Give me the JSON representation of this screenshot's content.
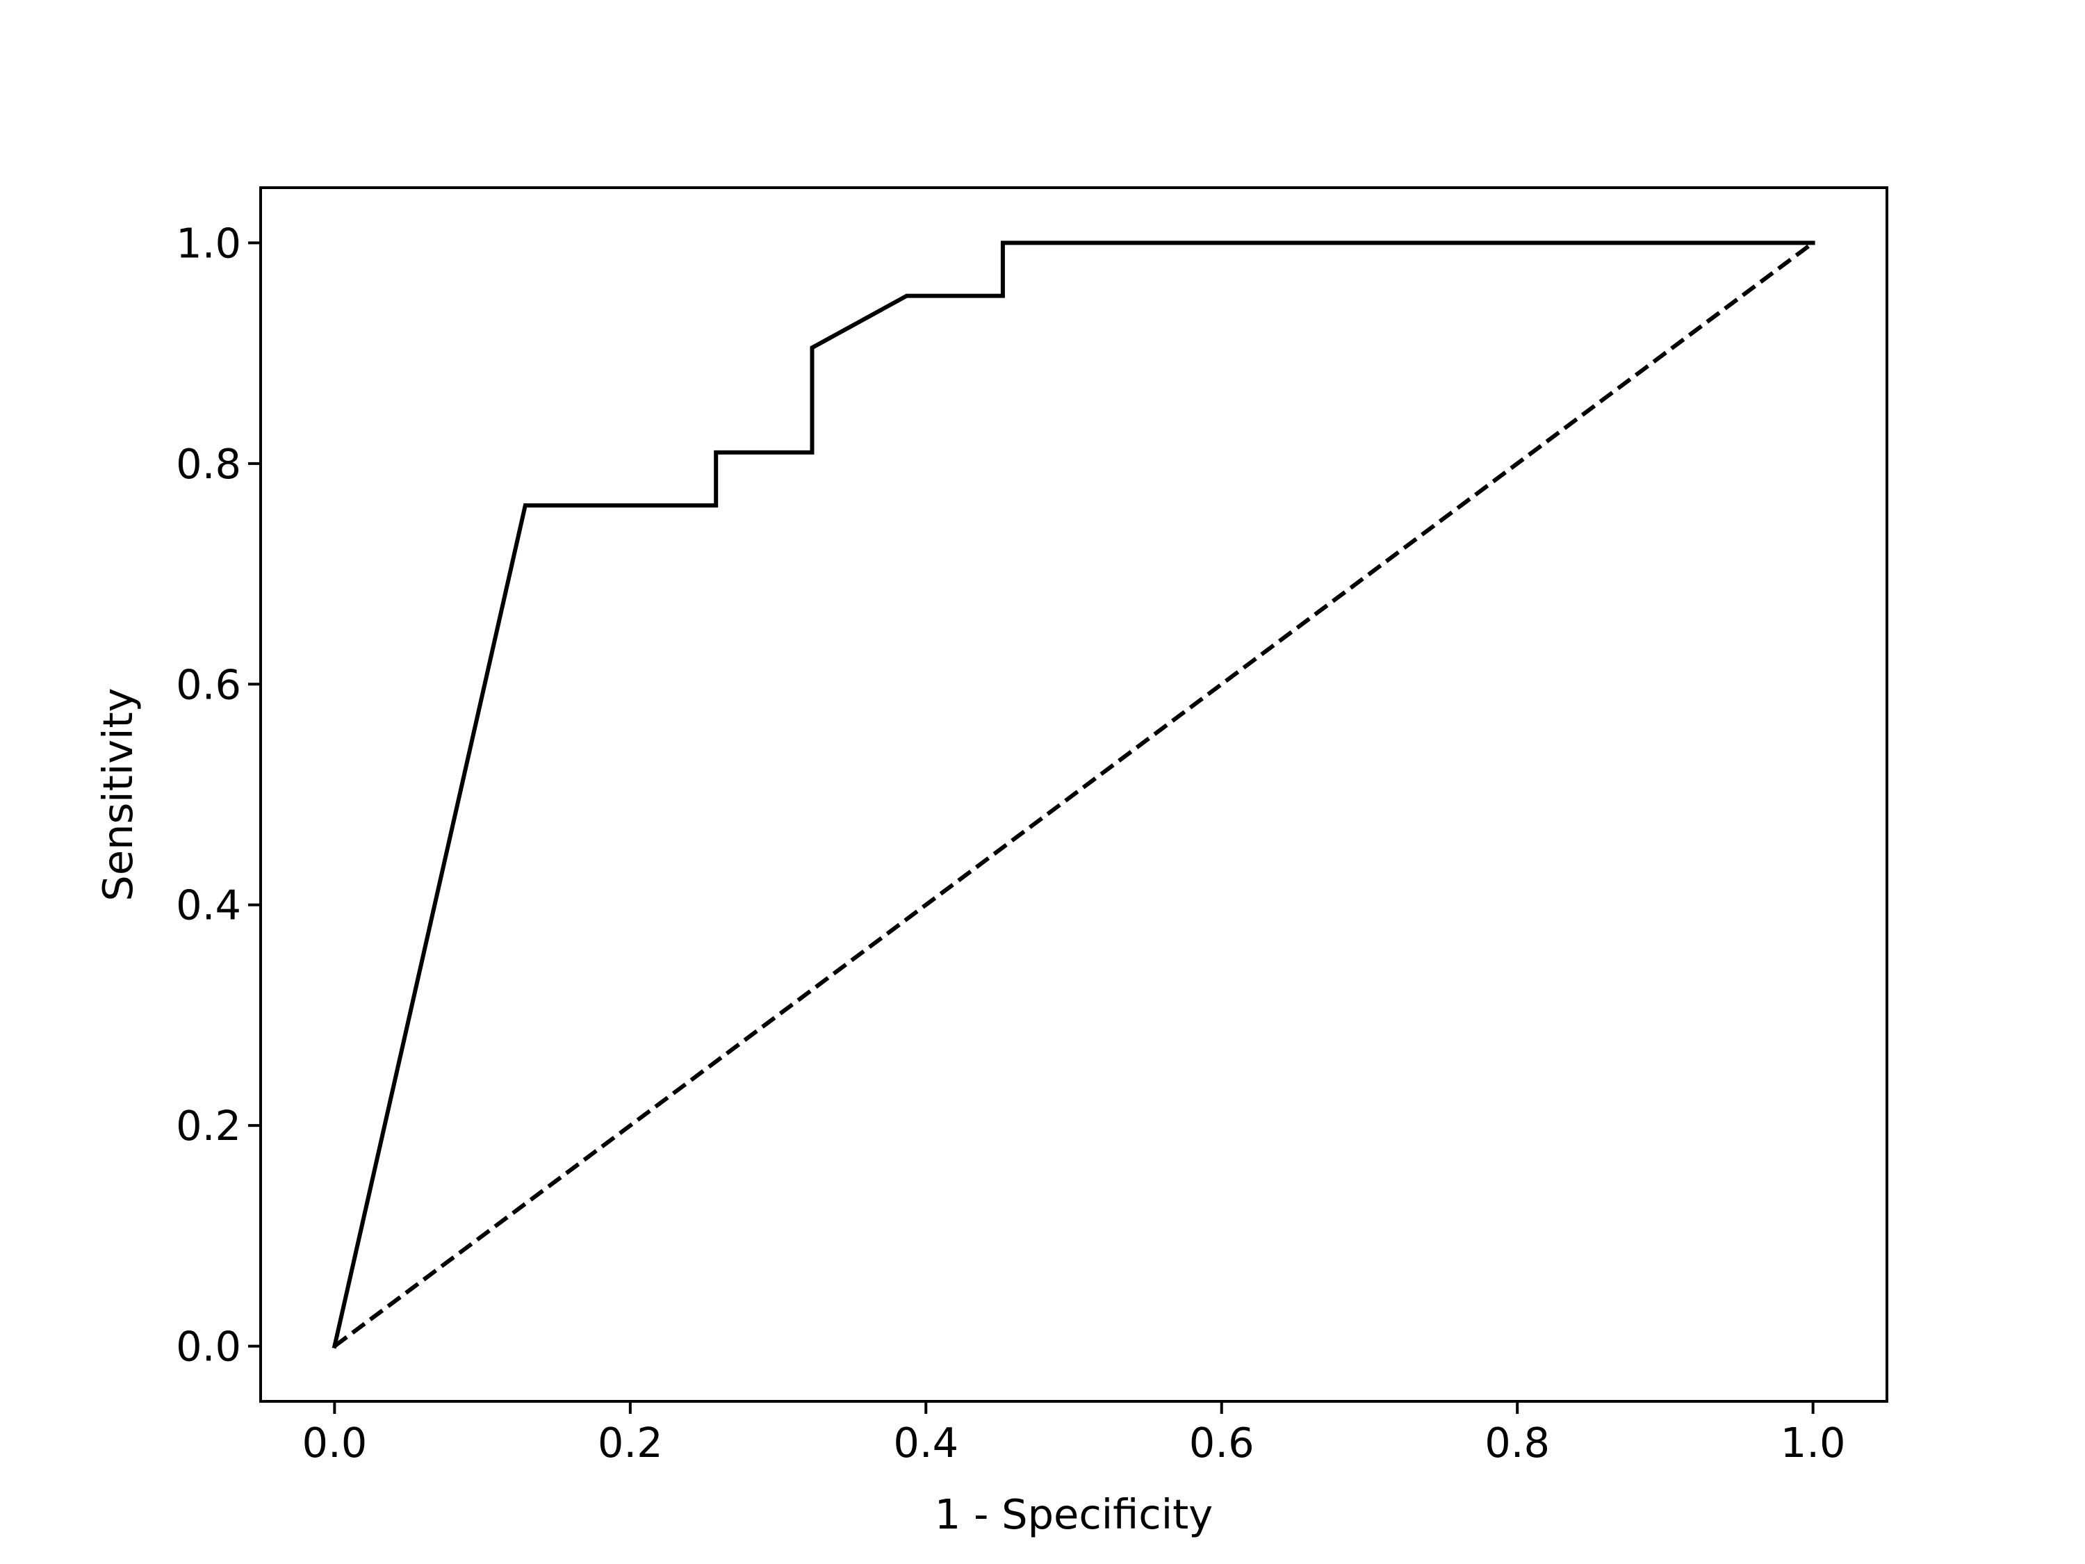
{
  "chart_data": {
    "type": "line",
    "title": "",
    "xlabel": "1 - Specificity",
    "ylabel": "Sensitivity",
    "xlim": [
      -0.05,
      1.05
    ],
    "ylim": [
      -0.05,
      1.05
    ],
    "xticks": [
      0.0,
      0.2,
      0.4,
      0.6,
      0.8,
      1.0
    ],
    "yticks": [
      0.0,
      0.2,
      0.4,
      0.6,
      0.8,
      1.0
    ],
    "xtick_labels": [
      "0.0",
      "0.2",
      "0.4",
      "0.6",
      "0.8",
      "1.0"
    ],
    "ytick_labels": [
      "0.0",
      "0.2",
      "0.4",
      "0.6",
      "0.8",
      "1.0"
    ],
    "grid": false,
    "legend": "none",
    "series": [
      {
        "style": "solid",
        "color": "#000000",
        "x": [
          0.0,
          0.129,
          0.129,
          0.258,
          0.258,
          0.323,
          0.323,
          0.387,
          0.452,
          0.452,
          1.0
        ],
        "y": [
          0.0,
          0.762,
          0.762,
          0.762,
          0.81,
          0.81,
          0.905,
          0.952,
          0.952,
          1.0,
          1.0
        ]
      },
      {
        "style": "dashed",
        "color": "#000000",
        "x": [
          0.0,
          1.0
        ],
        "y": [
          0.0,
          1.0
        ]
      }
    ]
  }
}
